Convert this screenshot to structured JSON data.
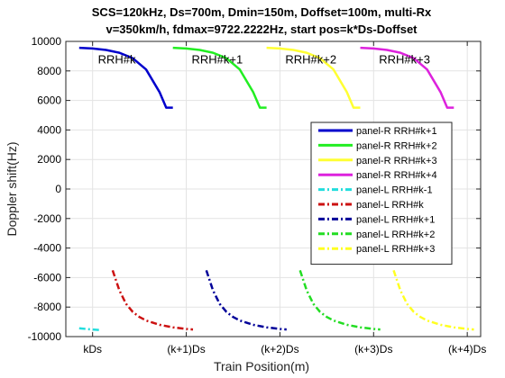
{
  "chart_data": {
    "type": "line",
    "title_lines": [
      "SCS=120kHz, Ds=700m, Dmin=150m, Doffset=100m, multi-Rx",
      "v=350km/h, fdmax=9722.2222Hz, start pos=k*Ds-Doffset"
    ],
    "xlabel": "Train Position(m)",
    "ylabel": "Doppler shift(Hz)",
    "ylim": [
      -10000,
      10000
    ],
    "yticks": [
      -10000,
      -8000,
      -6000,
      -4000,
      -2000,
      0,
      2000,
      4000,
      6000,
      8000,
      10000
    ],
    "xlim": [
      -200,
      2900
    ],
    "xticks": [
      {
        "label": "kDs",
        "value": 0
      },
      {
        "label": "(k+1)Ds",
        "value": 700
      },
      {
        "label": "(k+2)Ds",
        "value": 1400
      },
      {
        "label": "(k+3)Ds",
        "value": 2100
      },
      {
        "label": "(k+4)Ds",
        "value": 2800
      }
    ],
    "grid": true,
    "legend_position": "right",
    "annotations": [
      {
        "text": "RRH#k",
        "x": 40,
        "y": 8500
      },
      {
        "text": "RRH#k+1",
        "x": 740,
        "y": 8500
      },
      {
        "text": "RRH#k+2",
        "x": 1440,
        "y": 8500
      },
      {
        "text": "RRH#k+3",
        "x": 2140,
        "y": 8500
      }
    ],
    "series": [
      {
        "name": "panel-R RRH#k+1",
        "color": "#0000cc",
        "dash": "solid",
        "x": [
          -100,
          0,
          100,
          200,
          300,
          400,
          500,
          550,
          600
        ],
        "y": [
          9570,
          9520,
          9420,
          9230,
          8860,
          8100,
          6570,
          5510,
          5510
        ]
      },
      {
        "name": "panel-R RRH#k+2",
        "color": "#22ee22",
        "dash": "solid",
        "x": [
          600,
          700,
          800,
          900,
          1000,
          1100,
          1200,
          1250,
          1300
        ],
        "y": [
          9570,
          9520,
          9420,
          9230,
          8860,
          8100,
          6570,
          5510,
          5510
        ]
      },
      {
        "name": "panel-R RRH#k+3",
        "color": "#ffff33",
        "dash": "solid",
        "x": [
          1300,
          1400,
          1500,
          1600,
          1700,
          1800,
          1900,
          1950,
          2000
        ],
        "y": [
          9570,
          9520,
          9420,
          9230,
          8860,
          8100,
          6570,
          5510,
          5510
        ]
      },
      {
        "name": "panel-R RRH#k+4",
        "color": "#dd22dd",
        "dash": "solid",
        "x": [
          2000,
          2100,
          2200,
          2300,
          2400,
          2500,
          2600,
          2650,
          2700
        ],
        "y": [
          9570,
          9520,
          9420,
          9230,
          8860,
          8100,
          6570,
          5510,
          5510
        ]
      },
      {
        "name": "panel-L RRH#k-1",
        "color": "#22dddd",
        "dash": "dashdot",
        "x": [
          -100,
          -50,
          0,
          50
        ],
        "y": [
          -9430,
          -9480,
          -9520,
          -9550
        ]
      },
      {
        "name": "panel-L RRH#k",
        "color": "#cc1111",
        "dash": "dashdot",
        "x": [
          150,
          200,
          250,
          300,
          350,
          400,
          500,
          600,
          700,
          750
        ],
        "y": [
          -5510,
          -6870,
          -7780,
          -8330,
          -8670,
          -8910,
          -9200,
          -9370,
          -9480,
          -9520
        ]
      },
      {
        "name": "panel-L RRH#k+1",
        "color": "#000099",
        "dash": "dashdot",
        "x": [
          850,
          900,
          950,
          1000,
          1050,
          1100,
          1200,
          1300,
          1400,
          1450
        ],
        "y": [
          -5510,
          -6870,
          -7780,
          -8330,
          -8670,
          -8910,
          -9200,
          -9370,
          -9480,
          -9520
        ]
      },
      {
        "name": "panel-L RRH#k+2",
        "color": "#22dd22",
        "dash": "dashdot",
        "x": [
          1550,
          1600,
          1650,
          1700,
          1750,
          1800,
          1900,
          2000,
          2100,
          2150
        ],
        "y": [
          -5510,
          -6870,
          -7780,
          -8330,
          -8670,
          -8910,
          -9200,
          -9370,
          -9480,
          -9520
        ]
      },
      {
        "name": "panel-L RRH#k+3",
        "color": "#ffff22",
        "dash": "dashdot",
        "x": [
          2250,
          2300,
          2350,
          2400,
          2450,
          2500,
          2600,
          2700,
          2800,
          2850
        ],
        "y": [
          -5510,
          -6870,
          -7780,
          -8330,
          -8670,
          -8910,
          -9200,
          -9370,
          -9480,
          -9520
        ]
      }
    ]
  }
}
